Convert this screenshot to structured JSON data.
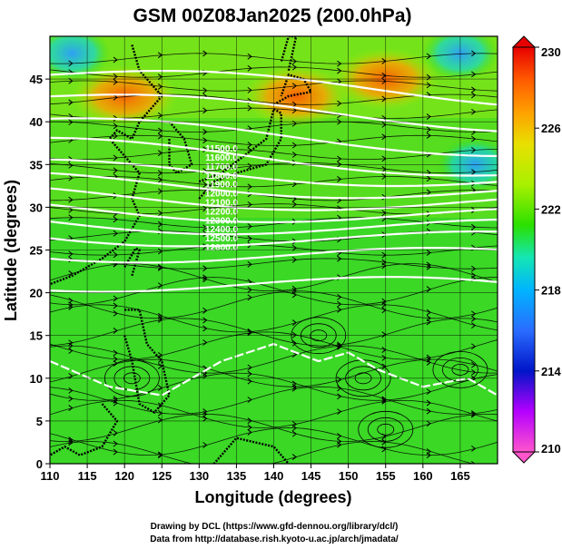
{
  "chart_data": {
    "type": "heatmap",
    "title": "GSM 00Z08Jan2025 (200.0hPa)",
    "xlabel": "Longitude (degrees)",
    "ylabel": "Latitude  (degrees)",
    "xlim": [
      110,
      170
    ],
    "ylim": [
      0,
      50
    ],
    "xticks": [
      "110",
      "115",
      "120",
      "125",
      "130",
      "135",
      "140",
      "145",
      "150",
      "155",
      "160",
      "165"
    ],
    "yticks": [
      "0",
      "5",
      "10",
      "15",
      "20",
      "25",
      "30",
      "35",
      "40",
      "45"
    ],
    "colorbar": {
      "min": 210,
      "max": 230,
      "ticks": [
        "210",
        "214",
        "218",
        "222",
        "226",
        "230"
      ],
      "colors": [
        "#ff55cc",
        "#b400ff",
        "#0015c8",
        "#2a6cff",
        "#00b4ff",
        "#14e6b4",
        "#2ae000",
        "#a8f000",
        "#e8e000",
        "#ffa000",
        "#ff5a00",
        "#e80000"
      ]
    },
    "contour_labels": [
      "11500.0",
      "11600.0",
      "11700.0",
      "11800.0",
      "11900.0",
      "12000.0",
      "12100.0",
      "12200.0",
      "12300.0",
      "12400.0",
      "12500.0",
      "12600.0"
    ],
    "warm_regions": [
      {
        "lon": 143,
        "lat": 43,
        "value": 227
      },
      {
        "lon": 120,
        "lat": 43,
        "value": 226
      },
      {
        "lon": 155,
        "lat": 45,
        "value": 225
      }
    ],
    "cool_regions": [
      {
        "lon": 167,
        "lat": 35,
        "value": 218
      },
      {
        "lon": 113,
        "lat": 48,
        "value": 219
      },
      {
        "lon": 165,
        "lat": 48,
        "value": 218
      }
    ],
    "grid": true
  },
  "credits": {
    "line1": "Drawing by DCL (https://www.gfd-dennou.org/library/dcl/)",
    "line2": "Data from http://database.rish.kyoto-u.ac.jp/arch/jmadata/"
  }
}
